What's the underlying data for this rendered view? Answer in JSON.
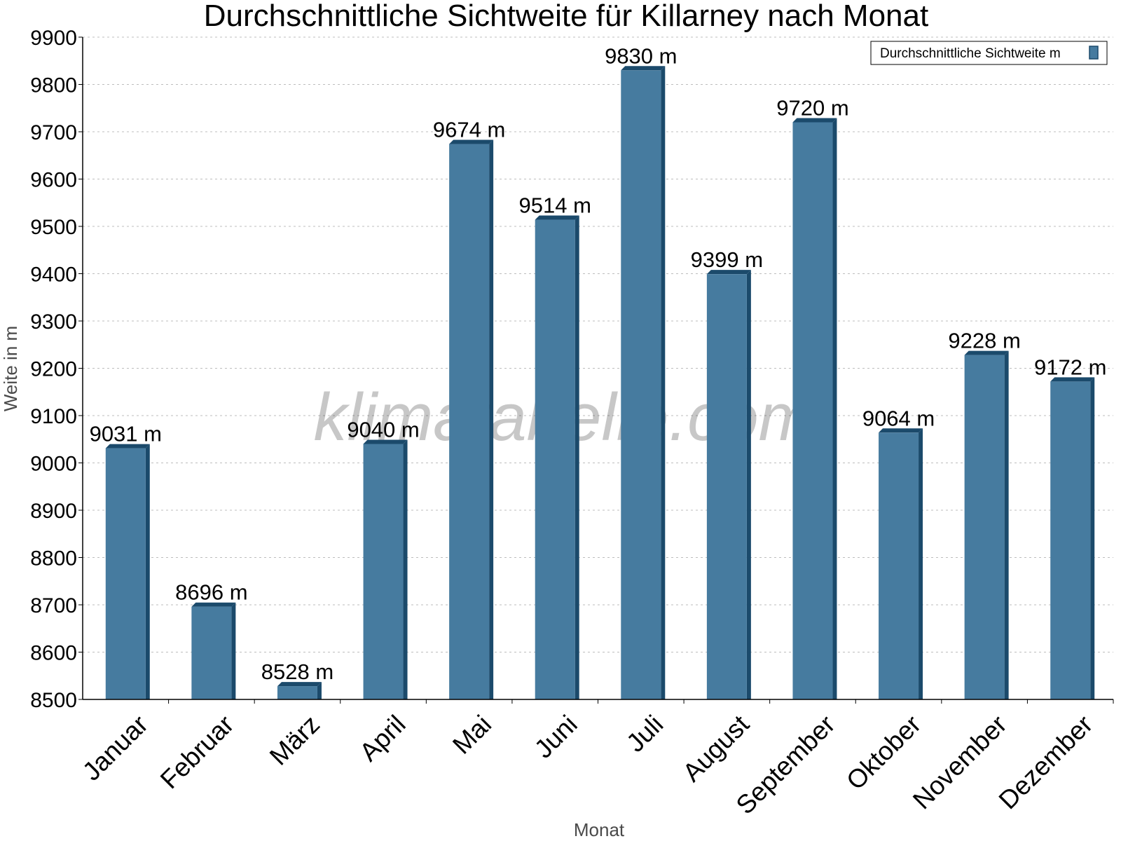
{
  "chart_data": {
    "type": "bar",
    "title": "Durchschnittliche Sichtweite für Killarney nach Monat",
    "xlabel": "Monat",
    "ylabel": "Weite in m",
    "categories": [
      "Januar",
      "Februar",
      "März",
      "April",
      "Mai",
      "Juni",
      "Juli",
      "August",
      "September",
      "Oktober",
      "November",
      "Dezember"
    ],
    "series": [
      {
        "name": "Durchschnittliche Sichtweite m",
        "values": [
          9031,
          8696,
          8528,
          9040,
          9674,
          9514,
          9830,
          9399,
          9720,
          9064,
          9228,
          9172
        ],
        "color": "#467b9f"
      }
    ],
    "value_labels": [
      "9031 m",
      "8696 m",
      "8528 m",
      "9040 m",
      "9674 m",
      "9514 m",
      "9830 m",
      "9399 m",
      "9720 m",
      "9064 m",
      "9228 m",
      "9172 m"
    ],
    "yticks": [
      "8500",
      "8600",
      "8700",
      "8800",
      "8900",
      "9000",
      "9100",
      "9200",
      "9300",
      "9400",
      "9500",
      "9600",
      "9700",
      "9800",
      "9900"
    ],
    "ylim": [
      8500,
      9900
    ],
    "ystep": 100,
    "grid": true,
    "legend_position": "top-right",
    "watermark": "klimatabelle.com",
    "colors": {
      "bar": "#467b9f",
      "bar_dark": "#1b4a6b",
      "grid": "#bdbdbd"
    }
  }
}
